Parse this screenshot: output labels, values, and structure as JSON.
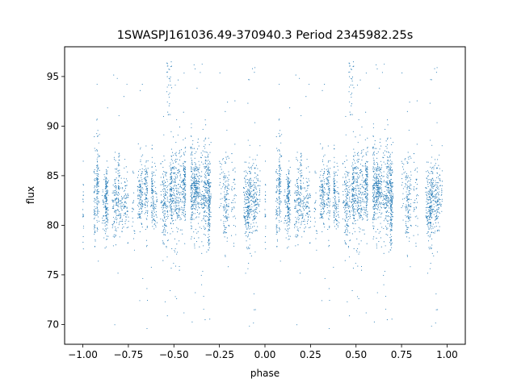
{
  "chart_data": {
    "type": "scatter",
    "title": "1SWASPJ161036.49-370940.3 Period 2345982.25s",
    "xlabel": "phase",
    "ylabel": "flux",
    "xlim": [
      -1.1,
      1.1
    ],
    "ylim": [
      68.0,
      98.0
    ],
    "x_ticks": [
      -1.0,
      -0.75,
      -0.5,
      -0.25,
      0.0,
      0.25,
      0.5,
      0.75,
      1.0
    ],
    "x_tick_labels": [
      "−1.00",
      "−0.75",
      "−0.50",
      "−0.25",
      "0.00",
      "0.25",
      "0.50",
      "0.75",
      "1.00"
    ],
    "y_ticks": [
      70,
      75,
      80,
      85,
      90,
      95
    ],
    "y_tick_labels": [
      "70",
      "75",
      "80",
      "85",
      "90",
      "95"
    ],
    "marker_color": "#1f77b4",
    "grid": false,
    "legend": "none",
    "series": [
      {
        "phase_min": -1.0,
        "phase_max": 1.0,
        "flux_median": 82.8,
        "flux_typical_range": [
          78.0,
          88.0
        ],
        "flux_extreme_range": [
          69.5,
          96.5
        ],
        "mirrored_about_phase_zero": true,
        "point_density": "dense"
      }
    ]
  }
}
